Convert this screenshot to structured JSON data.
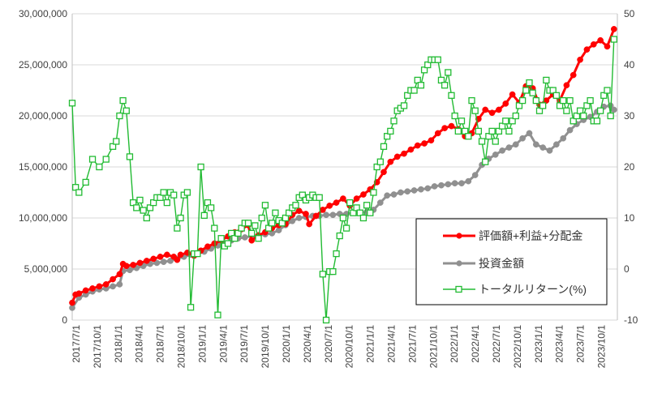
{
  "chart_data": {
    "type": "line",
    "x_ticks": [
      "2017/7/1",
      "2017/10/1",
      "2018/1/1",
      "2018/4/1",
      "2018/7/1",
      "2018/10/1",
      "2019/1/1",
      "2019/4/1",
      "2019/7/1",
      "2019/10/1",
      "2020/1/1",
      "2020/4/1",
      "2020/7/1",
      "2020/10/1",
      "2021/1/1",
      "2021/4/1",
      "2021/7/1",
      "2021/10/1",
      "2022/1/1",
      "2022/4/1",
      "2022/7/1",
      "2022/10/1",
      "2023/1/1",
      "2023/4/1",
      "2023/7/1",
      "2023/10/1"
    ],
    "y_left": {
      "min": 0,
      "max": 30000000,
      "ticks": [
        "0",
        "5,000,000",
        "10,000,000",
        "15,000,000",
        "20,000,000",
        "25,000,000",
        "30,000,000"
      ]
    },
    "y_right": {
      "min": -10,
      "max": 50,
      "ticks": [
        "-10",
        "0",
        "10",
        "20",
        "30",
        "40",
        "50"
      ]
    },
    "legend_position": "inside-right",
    "series": [
      {
        "name": "評価額+利益+分配金",
        "axis": "left",
        "color": "#ff0000",
        "marker": "filled-circle",
        "values": [
          [
            0,
            1.7
          ],
          [
            1,
            2.5
          ],
          [
            2,
            2.6
          ],
          [
            4,
            2.9
          ],
          [
            6,
            3.1
          ],
          [
            8,
            3.3
          ],
          [
            10,
            3.5
          ],
          [
            12,
            4.0
          ],
          [
            14,
            4.5
          ],
          [
            15,
            5.5
          ],
          [
            16,
            5.3
          ],
          [
            18,
            5.4
          ],
          [
            20,
            5.6
          ],
          [
            22,
            5.8
          ],
          [
            24,
            6.0
          ],
          [
            26,
            6.2
          ],
          [
            28,
            6.4
          ],
          [
            30,
            6.2
          ],
          [
            31,
            5.9
          ],
          [
            32,
            6.4
          ],
          [
            34,
            6.6
          ],
          [
            36,
            6.3
          ],
          [
            38,
            6.8
          ],
          [
            40,
            7.2
          ],
          [
            42,
            7.5
          ],
          [
            44,
            7.8
          ],
          [
            46,
            8.2
          ],
          [
            48,
            8.6
          ],
          [
            50,
            8.9
          ],
          [
            52,
            9.3
          ],
          [
            53,
            7.8
          ],
          [
            55,
            8.3
          ],
          [
            57,
            8.6
          ],
          [
            59,
            9.0
          ],
          [
            61,
            9.3
          ],
          [
            63,
            9.4
          ],
          [
            65,
            10.3
          ],
          [
            67,
            10.7
          ],
          [
            69,
            10.4
          ],
          [
            70,
            9.4
          ],
          [
            72,
            10.2
          ],
          [
            74,
            10.8
          ],
          [
            76,
            11.2
          ],
          [
            78,
            11.5
          ],
          [
            80,
            11.9
          ],
          [
            82,
            11.2
          ],
          [
            84,
            11.9
          ],
          [
            86,
            12.3
          ],
          [
            88,
            12.8
          ],
          [
            90,
            13.5
          ],
          [
            92,
            14.5
          ],
          [
            94,
            15.5
          ],
          [
            96,
            16.0
          ],
          [
            98,
            16.3
          ],
          [
            100,
            16.7
          ],
          [
            102,
            17.1
          ],
          [
            104,
            17.3
          ],
          [
            106,
            17.6
          ],
          [
            108,
            18.3
          ],
          [
            110,
            18.8
          ],
          [
            112,
            19.0
          ],
          [
            114,
            18.7
          ],
          [
            116,
            18.0
          ],
          [
            118,
            18.3
          ],
          [
            120,
            19.7
          ],
          [
            122,
            20.6
          ],
          [
            124,
            20.3
          ],
          [
            126,
            20.6
          ],
          [
            128,
            21.2
          ],
          [
            130,
            22.1
          ],
          [
            132,
            21.3
          ],
          [
            134,
            22.9
          ],
          [
            136,
            22.7
          ],
          [
            138,
            21.1
          ],
          [
            140,
            21.5
          ],
          [
            142,
            22.1
          ],
          [
            144,
            21.5
          ],
          [
            146,
            23.0
          ],
          [
            148,
            24.0
          ],
          [
            150,
            25.5
          ],
          [
            152,
            26.5
          ],
          [
            154,
            27.0
          ],
          [
            156,
            27.4
          ],
          [
            158,
            26.8
          ],
          [
            160,
            28.5
          ]
        ]
      },
      {
        "name": "投資金額",
        "axis": "left",
        "color": "#909090",
        "marker": "filled-circle",
        "values": [
          [
            0,
            1.2
          ],
          [
            2,
            2.2
          ],
          [
            4,
            2.5
          ],
          [
            6,
            2.8
          ],
          [
            8,
            3.0
          ],
          [
            10,
            3.1
          ],
          [
            12,
            3.3
          ],
          [
            14,
            3.5
          ],
          [
            15,
            4.8
          ],
          [
            17,
            4.9
          ],
          [
            19,
            5.1
          ],
          [
            21,
            5.3
          ],
          [
            23,
            5.5
          ],
          [
            25,
            5.6
          ],
          [
            27,
            5.7
          ],
          [
            29,
            5.8
          ],
          [
            31,
            6.0
          ],
          [
            33,
            6.2
          ],
          [
            35,
            6.4
          ],
          [
            37,
            6.5
          ],
          [
            39,
            6.7
          ],
          [
            41,
            7.0
          ],
          [
            43,
            7.3
          ],
          [
            45,
            7.5
          ],
          [
            47,
            7.8
          ],
          [
            49,
            8.0
          ],
          [
            51,
            8.1
          ],
          [
            53,
            8.2
          ],
          [
            55,
            8.3
          ],
          [
            57,
            8.4
          ],
          [
            59,
            8.5
          ],
          [
            61,
            8.8
          ],
          [
            63,
            9.3
          ],
          [
            65,
            9.7
          ],
          [
            67,
            10.0
          ],
          [
            69,
            10.1
          ],
          [
            71,
            10.2
          ],
          [
            73,
            10.2
          ],
          [
            75,
            10.3
          ],
          [
            77,
            10.3
          ],
          [
            79,
            10.4
          ],
          [
            81,
            10.4
          ],
          [
            83,
            10.5
          ],
          [
            85,
            10.5
          ],
          [
            87,
            10.6
          ],
          [
            89,
            10.8
          ],
          [
            91,
            11.5
          ],
          [
            93,
            12.2
          ],
          [
            95,
            12.3
          ],
          [
            97,
            12.5
          ],
          [
            99,
            12.6
          ],
          [
            101,
            12.7
          ],
          [
            103,
            12.8
          ],
          [
            105,
            12.9
          ],
          [
            107,
            13.1
          ],
          [
            109,
            13.2
          ],
          [
            111,
            13.3
          ],
          [
            113,
            13.4
          ],
          [
            115,
            13.4
          ],
          [
            117,
            13.6
          ],
          [
            119,
            14.2
          ],
          [
            121,
            15.2
          ],
          [
            123,
            15.8
          ],
          [
            125,
            16.2
          ],
          [
            127,
            16.6
          ],
          [
            129,
            16.9
          ],
          [
            131,
            17.2
          ],
          [
            133,
            17.8
          ],
          [
            135,
            18.3
          ],
          [
            137,
            17.2
          ],
          [
            139,
            16.9
          ],
          [
            141,
            16.6
          ],
          [
            143,
            17.2
          ],
          [
            145,
            17.8
          ],
          [
            147,
            18.6
          ],
          [
            149,
            19.2
          ],
          [
            151,
            19.6
          ],
          [
            153,
            19.9
          ],
          [
            155,
            20.4
          ],
          [
            157,
            20.9
          ],
          [
            159,
            21.0
          ],
          [
            160,
            20.6
          ]
        ]
      },
      {
        "name": "トータルリターン(%)",
        "axis": "right",
        "color": "#22bb33",
        "marker": "open-square",
        "values": [
          [
            0,
            32.5
          ],
          [
            1,
            16
          ],
          [
            2,
            15
          ],
          [
            4,
            17
          ],
          [
            6,
            21.5
          ],
          [
            8,
            20
          ],
          [
            10,
            21.5
          ],
          [
            12,
            24
          ],
          [
            13,
            25
          ],
          [
            14,
            30
          ],
          [
            15,
            33
          ],
          [
            16,
            31
          ],
          [
            17,
            22
          ],
          [
            18,
            13
          ],
          [
            19,
            12
          ],
          [
            20,
            13.5
          ],
          [
            21,
            11.5
          ],
          [
            22,
            10
          ],
          [
            23,
            12
          ],
          [
            24,
            13
          ],
          [
            25,
            14
          ],
          [
            26,
            14
          ],
          [
            27,
            15
          ],
          [
            28,
            13
          ],
          [
            29,
            15
          ],
          [
            30,
            14.5
          ],
          [
            31,
            8
          ],
          [
            32,
            10
          ],
          [
            33,
            14.5
          ],
          [
            34,
            15
          ],
          [
            35,
            -7.5
          ],
          [
            36,
            3
          ],
          [
            37,
            3
          ],
          [
            38,
            20
          ],
          [
            39,
            10.5
          ],
          [
            40,
            13
          ],
          [
            41,
            12
          ],
          [
            42,
            8
          ],
          [
            43,
            -9
          ],
          [
            44,
            6
          ],
          [
            45,
            4.5
          ],
          [
            46,
            5
          ],
          [
            47,
            7
          ],
          [
            48,
            6
          ],
          [
            49,
            7
          ],
          [
            50,
            8
          ],
          [
            51,
            9
          ],
          [
            52,
            9
          ],
          [
            53,
            7
          ],
          [
            54,
            8.5
          ],
          [
            55,
            6
          ],
          [
            56,
            10
          ],
          [
            57,
            12.5
          ],
          [
            58,
            8
          ],
          [
            59,
            9
          ],
          [
            60,
            11
          ],
          [
            61,
            9.5
          ],
          [
            62,
            9
          ],
          [
            63,
            10
          ],
          [
            64,
            11
          ],
          [
            65,
            12
          ],
          [
            66,
            12.5
          ],
          [
            67,
            14
          ],
          [
            68,
            14.5
          ],
          [
            69,
            13.5
          ],
          [
            70,
            14
          ],
          [
            71,
            14.5
          ],
          [
            72,
            14
          ],
          [
            73,
            14
          ],
          [
            74,
            -1
          ],
          [
            75,
            -10
          ],
          [
            76,
            -0.5
          ],
          [
            77,
            -0.5
          ],
          [
            78,
            3
          ],
          [
            79,
            6.5
          ],
          [
            80,
            10
          ],
          [
            81,
            8
          ],
          [
            82,
            13
          ],
          [
            83,
            11
          ],
          [
            84,
            12
          ],
          [
            85,
            11
          ],
          [
            86,
            10
          ],
          [
            87,
            12.5
          ],
          [
            88,
            11
          ],
          [
            89,
            15
          ],
          [
            90,
            20
          ],
          [
            91,
            21
          ],
          [
            92,
            24
          ],
          [
            93,
            26
          ],
          [
            94,
            27
          ],
          [
            95,
            29
          ],
          [
            96,
            31
          ],
          [
            97,
            31.5
          ],
          [
            98,
            32
          ],
          [
            99,
            34
          ],
          [
            100,
            35
          ],
          [
            101,
            35
          ],
          [
            102,
            37
          ],
          [
            103,
            36
          ],
          [
            104,
            39
          ],
          [
            105,
            40
          ],
          [
            106,
            41
          ],
          [
            107,
            41
          ],
          [
            108,
            41
          ],
          [
            109,
            37
          ],
          [
            110,
            36
          ],
          [
            111,
            38.5
          ],
          [
            112,
            34
          ],
          [
            113,
            30
          ],
          [
            114,
            27
          ],
          [
            115,
            29
          ],
          [
            116,
            27
          ],
          [
            117,
            26
          ],
          [
            118,
            33
          ],
          [
            119,
            31
          ],
          [
            120,
            27
          ],
          [
            121,
            25
          ],
          [
            122,
            21
          ],
          [
            123,
            26
          ],
          [
            124,
            27
          ],
          [
            125,
            25
          ],
          [
            126,
            27
          ],
          [
            127,
            28
          ],
          [
            128,
            29
          ],
          [
            129,
            27
          ],
          [
            130,
            29
          ],
          [
            131,
            30
          ],
          [
            132,
            32
          ],
          [
            133,
            33
          ],
          [
            134,
            35
          ],
          [
            135,
            36.5
          ],
          [
            136,
            34.5
          ],
          [
            137,
            33
          ],
          [
            138,
            31
          ],
          [
            139,
            32
          ],
          [
            140,
            37
          ],
          [
            141,
            35
          ],
          [
            142,
            35
          ],
          [
            143,
            34
          ],
          [
            144,
            32
          ],
          [
            145,
            33
          ],
          [
            146,
            31
          ],
          [
            147,
            33
          ],
          [
            148,
            29
          ],
          [
            149,
            30
          ],
          [
            150,
            31
          ],
          [
            151,
            30
          ],
          [
            152,
            32
          ],
          [
            153,
            33
          ],
          [
            154,
            29
          ],
          [
            155,
            29
          ],
          [
            156,
            31
          ],
          [
            157,
            34
          ],
          [
            158,
            35
          ],
          [
            159,
            30
          ],
          [
            160,
            45
          ]
        ]
      }
    ]
  }
}
